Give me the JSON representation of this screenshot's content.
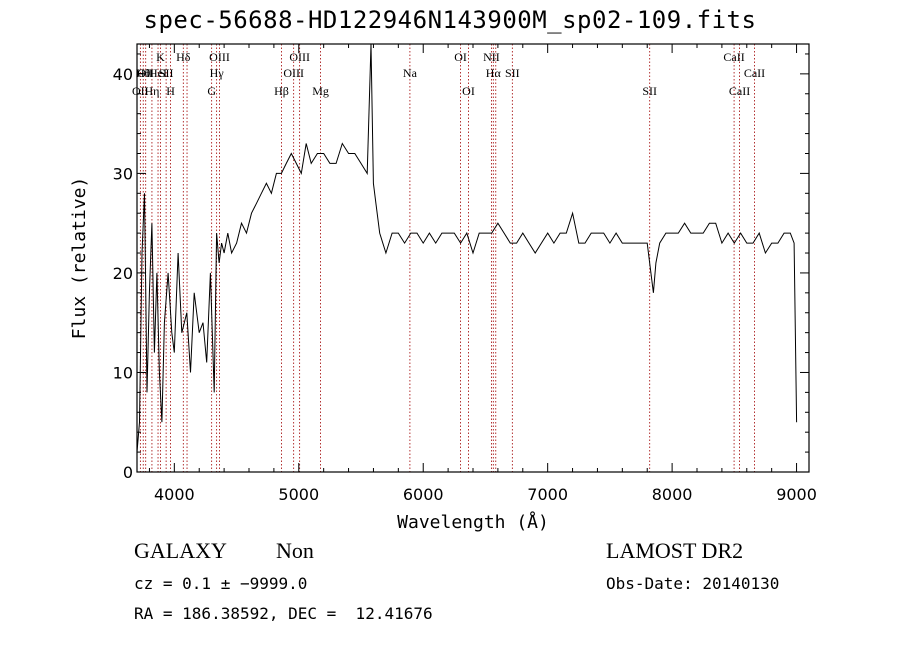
{
  "chart_data": {
    "type": "line",
    "title": "spec-56688-HD122946N143900M_sp02-109.fits",
    "xlabel": "Wavelength (Å)",
    "ylabel": "Flux (relative)",
    "xlim": [
      3700,
      9100
    ],
    "ylim": [
      0,
      43
    ],
    "xticks": [
      4000,
      5000,
      6000,
      7000,
      8000,
      9000
    ],
    "yticks": [
      0,
      10,
      20,
      30,
      40
    ],
    "grid": false,
    "series": [
      {
        "x": [
          3700,
          3720,
          3740,
          3760,
          3780,
          3800,
          3820,
          3840,
          3860,
          3880,
          3900,
          3920,
          3950,
          3980,
          4000,
          4030,
          4060,
          4100,
          4130,
          4160,
          4200,
          4230,
          4260,
          4290,
          4320,
          4340,
          4360,
          4380,
          4400,
          4430,
          4460,
          4500,
          4540,
          4580,
          4620,
          4660,
          4700,
          4740,
          4780,
          4820,
          4860,
          4900,
          4940,
          4980,
          5020,
          5060,
          5100,
          5150,
          5200,
          5250,
          5300,
          5350,
          5400,
          5450,
          5500,
          5550,
          5580,
          5600,
          5620,
          5650,
          5700,
          5750,
          5800,
          5850,
          5900,
          5950,
          6000,
          6050,
          6100,
          6150,
          6200,
          6250,
          6300,
          6350,
          6400,
          6450,
          6500,
          6550,
          6600,
          6650,
          6700,
          6750,
          6800,
          6850,
          6900,
          6950,
          7000,
          7050,
          7100,
          7150,
          7200,
          7250,
          7300,
          7350,
          7400,
          7450,
          7500,
          7550,
          7600,
          7650,
          7700,
          7750,
          7800,
          7850,
          7870,
          7900,
          7950,
          8000,
          8050,
          8100,
          8150,
          8200,
          8250,
          8300,
          8350,
          8400,
          8450,
          8500,
          8550,
          8600,
          8650,
          8700,
          8750,
          8800,
          8850,
          8900,
          8950,
          8980,
          9000
        ],
        "y": [
          2,
          5,
          22,
          28,
          8,
          18,
          25,
          12,
          20,
          10,
          5,
          15,
          20,
          14,
          12,
          22,
          14,
          16,
          10,
          18,
          14,
          15,
          11,
          20,
          8,
          24,
          21,
          23,
          22,
          24,
          22,
          23,
          25,
          24,
          26,
          27,
          28,
          29,
          28,
          30,
          30,
          31,
          32,
          31,
          30,
          33,
          31,
          32,
          32,
          31,
          31,
          33,
          32,
          32,
          31,
          30,
          43,
          29,
          27,
          24,
          22,
          24,
          24,
          23,
          24,
          24,
          23,
          24,
          23,
          24,
          24,
          24,
          23,
          24,
          22,
          24,
          24,
          24,
          25,
          24,
          23,
          23,
          24,
          23,
          22,
          23,
          24,
          23,
          24,
          24,
          26,
          23,
          23,
          24,
          24,
          24,
          23,
          24,
          23,
          23,
          23,
          23,
          23,
          18,
          21,
          23,
          24,
          24,
          24,
          25,
          24,
          24,
          24,
          25,
          25,
          23,
          24,
          23,
          24,
          23,
          23,
          24,
          22,
          23,
          23,
          24,
          24,
          23,
          5
        ],
        "style": "black-line"
      }
    ],
    "line_markers": [
      {
        "wl": 3727,
        "label": "OII",
        "row": 2
      },
      {
        "wl": 3750,
        "label": "Hθ",
        "row": 1
      },
      {
        "wl": 3770,
        "label": "OII",
        "row": 1
      },
      {
        "wl": 3820,
        "label": "Hη",
        "row": 2
      },
      {
        "wl": 3869,
        "label": "HeI",
        "row": 1
      },
      {
        "wl": 3889,
        "label": "K",
        "row": 0
      },
      {
        "wl": 3934,
        "label": "SII",
        "row": 1
      },
      {
        "wl": 3970,
        "label": "H",
        "row": 2
      },
      {
        "wl": 4072,
        "label": "Hδ",
        "row": 0
      },
      {
        "wl": 4102,
        "label": "",
        "row": 0
      },
      {
        "wl": 4300,
        "label": "G",
        "row": 2
      },
      {
        "wl": 4340,
        "label": "Hγ",
        "row": 1
      },
      {
        "wl": 4363,
        "label": "OIII",
        "row": 0
      },
      {
        "wl": 4861,
        "label": "Hβ",
        "row": 2
      },
      {
        "wl": 4959,
        "label": "OIII",
        "row": 1
      },
      {
        "wl": 5007,
        "label": "OIII",
        "row": 0
      },
      {
        "wl": 5175,
        "label": "Mg",
        "row": 2
      },
      {
        "wl": 5893,
        "label": "Na",
        "row": 1
      },
      {
        "wl": 6300,
        "label": "OI",
        "row": 0
      },
      {
        "wl": 6364,
        "label": "OI",
        "row": 2
      },
      {
        "wl": 6548,
        "label": "NII",
        "row": 0
      },
      {
        "wl": 6563,
        "label": "Hα",
        "row": 1
      },
      {
        "wl": 6583,
        "label": "",
        "row": 0
      },
      {
        "wl": 6716,
        "label": "SII",
        "row": 1
      },
      {
        "wl": 7820,
        "label": "SII",
        "row": 2
      },
      {
        "wl": 8498,
        "label": "CaII",
        "row": 0
      },
      {
        "wl": 8542,
        "label": "CaII",
        "row": 2
      },
      {
        "wl": 8662,
        "label": "CaII",
        "row": 1
      }
    ]
  },
  "info": {
    "class": "GALAXY",
    "subclass": "Non",
    "cz": "cz = 0.1 ± −9999.0",
    "radec": "RA = 186.38592, DEC =  12.41676",
    "survey": "LAMOST DR2",
    "obsdate": "Obs-Date: 20140130"
  }
}
